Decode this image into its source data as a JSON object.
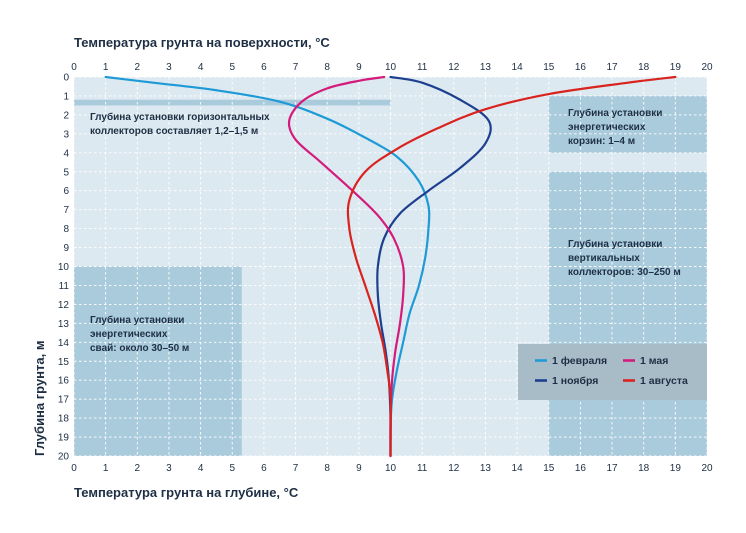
{
  "chart_data": {
    "type": "line",
    "title_top": "Температура грунта на поверхности, °C",
    "xlabel": "Температура грунта на глубине, °C",
    "ylabel": "Глубина грунта, м",
    "xlim": [
      0,
      20
    ],
    "ylim": [
      0,
      20
    ],
    "y_inverted": true,
    "x_ticks": [
      "0",
      "1",
      "2",
      "3",
      "4",
      "5",
      "6",
      "7",
      "8",
      "9",
      "10",
      "11",
      "12",
      "13",
      "14",
      "15",
      "16",
      "17",
      "18",
      "19",
      "20"
    ],
    "y_ticks": [
      "0",
      "1",
      "2",
      "3",
      "4",
      "5",
      "6",
      "7",
      "8",
      "9",
      "10",
      "11",
      "12",
      "13",
      "14",
      "15",
      "16",
      "17",
      "18",
      "19",
      "20"
    ],
    "grid": true,
    "legend_position": "bottom-right",
    "series": [
      {
        "name": "1 февраля",
        "color": "#1e9ad6",
        "points": [
          [
            1,
            0
          ],
          [
            2.5,
            0.3
          ],
          [
            4.5,
            0.7
          ],
          [
            6.5,
            1.3
          ],
          [
            8,
            2.2
          ],
          [
            9.2,
            3.2
          ],
          [
            10.2,
            4.2
          ],
          [
            10.9,
            5.5
          ],
          [
            11.2,
            6.8
          ],
          [
            11.2,
            8
          ],
          [
            11.1,
            9.5
          ],
          [
            10.9,
            11
          ],
          [
            10.6,
            12.5
          ],
          [
            10.4,
            14
          ],
          [
            10.2,
            15.5
          ],
          [
            10.05,
            17
          ],
          [
            10,
            18.5
          ],
          [
            10,
            20
          ]
        ]
      },
      {
        "name": "1 ноября",
        "color": "#1d3f8f",
        "points": [
          [
            10,
            0
          ],
          [
            11,
            0.3
          ],
          [
            12.2,
            1.2
          ],
          [
            13.1,
            2.3
          ],
          [
            13,
            3.5
          ],
          [
            12.2,
            4.8
          ],
          [
            11.2,
            6
          ],
          [
            10.3,
            7.2
          ],
          [
            9.8,
            8.5
          ],
          [
            9.6,
            10
          ],
          [
            9.6,
            11.5
          ],
          [
            9.7,
            13
          ],
          [
            9.85,
            14.5
          ],
          [
            9.95,
            16
          ],
          [
            10,
            18
          ],
          [
            10,
            20
          ]
        ]
      },
      {
        "name": "1 мая",
        "color": "#d41b7c",
        "points": [
          [
            9.8,
            0
          ],
          [
            9,
            0.2
          ],
          [
            8,
            0.6
          ],
          [
            7.2,
            1.3
          ],
          [
            6.8,
            2.3
          ],
          [
            7,
            3.3
          ],
          [
            7.8,
            4.5
          ],
          [
            8.8,
            6
          ],
          [
            9.6,
            7.3
          ],
          [
            10.1,
            8.5
          ],
          [
            10.4,
            10
          ],
          [
            10.4,
            11.5
          ],
          [
            10.3,
            13
          ],
          [
            10.15,
            14.5
          ],
          [
            10.05,
            16
          ],
          [
            10,
            18
          ],
          [
            10,
            20
          ]
        ]
      },
      {
        "name": "1 августа",
        "color": "#d9231f",
        "points": [
          [
            19,
            0
          ],
          [
            17.5,
            0.3
          ],
          [
            15,
            0.9
          ],
          [
            13,
            1.7
          ],
          [
            11.5,
            2.7
          ],
          [
            10.2,
            3.8
          ],
          [
            9.2,
            5
          ],
          [
            8.7,
            6.5
          ],
          [
            8.7,
            8
          ],
          [
            8.9,
            9.5
          ],
          [
            9.2,
            11
          ],
          [
            9.5,
            12.5
          ],
          [
            9.75,
            14
          ],
          [
            9.9,
            15.5
          ],
          [
            10,
            17
          ],
          [
            10,
            20
          ]
        ]
      }
    ],
    "zones": [
      {
        "label": "Глубина установки горизонтальных коллекторов составляет 1,2–1,5 м",
        "x": [
          0,
          10
        ],
        "y": [
          1.2,
          1.5
        ]
      },
      {
        "label": "Глубина установки энергетических корзин: 1–4 м",
        "x": [
          15,
          20
        ],
        "y": [
          1,
          4
        ]
      },
      {
        "label": "Глубина установки вертикальных коллекторов: 30–250 м",
        "x": [
          15,
          20
        ],
        "y": [
          5,
          20
        ]
      },
      {
        "label": "Глубина установки энергетических свай: около 30–50 м",
        "x": [
          0,
          5.3
        ],
        "y": [
          10,
          20
        ]
      }
    ]
  },
  "notes": {
    "horizontal_collectors": [
      "Глубина установки горизонтальных",
      "коллекторов составляет 1,2–1,5 м"
    ],
    "energy_baskets": [
      "Глубина установки",
      "энергетических",
      "корзин: 1–4 м"
    ],
    "vertical_collectors": [
      "Глубина установки",
      "вертикальных",
      "коллекторов: 30–250 м"
    ],
    "energy_piles": [
      "Глубина установки",
      "энергетических",
      "свай: около 30–50 м"
    ]
  },
  "colors": {
    "plot_background": "#dde9f0",
    "zone_fill": "#a9cbdc",
    "legend_box": "#a8bcc8",
    "grid": "#ffffff",
    "text": "#1e2f44"
  }
}
